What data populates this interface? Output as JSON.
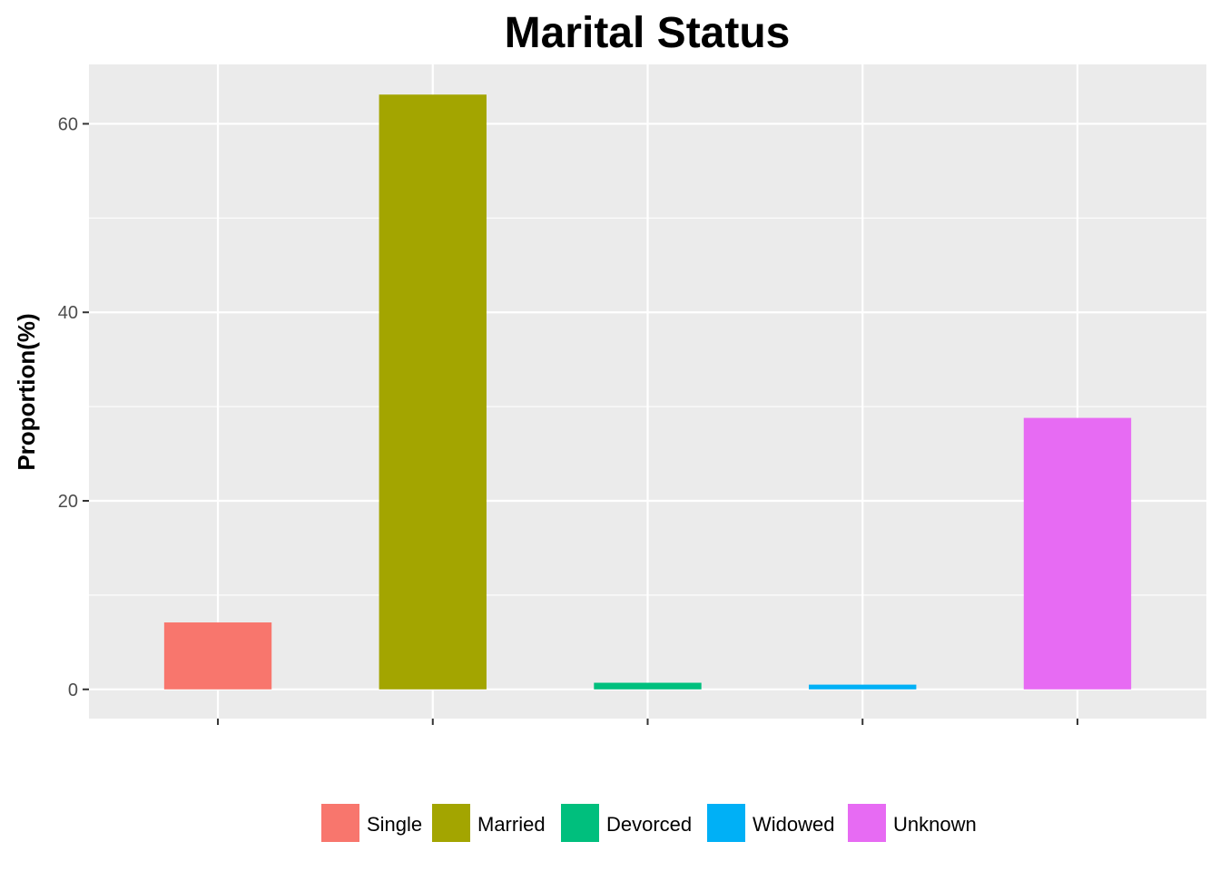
{
  "chart_data": {
    "type": "bar",
    "title": "Marital Status",
    "xlabel": "",
    "ylabel": "Proportion(%)",
    "categories": [
      "Single",
      "Married",
      "Devorced",
      "Widowed",
      "Unknown"
    ],
    "values": [
      7.1,
      63.1,
      0.7,
      0.5,
      28.8
    ],
    "colors": [
      "#F8766D",
      "#A3A500",
      "#00BF7D",
      "#00B0F6",
      "#E76BF3"
    ],
    "ylim": [
      -3.1,
      66.3
    ],
    "yticks": [
      0,
      20,
      40,
      60
    ],
    "ytick_labels": [
      "0",
      "20",
      "40",
      "60"
    ],
    "grid": true,
    "legend": {
      "position": "bottom",
      "entries": [
        "Single",
        "Married",
        "Devorced",
        "Widowed",
        "Unknown"
      ]
    },
    "panel_background": "#EBEBEB",
    "grid_color": "#FFFFFF"
  }
}
